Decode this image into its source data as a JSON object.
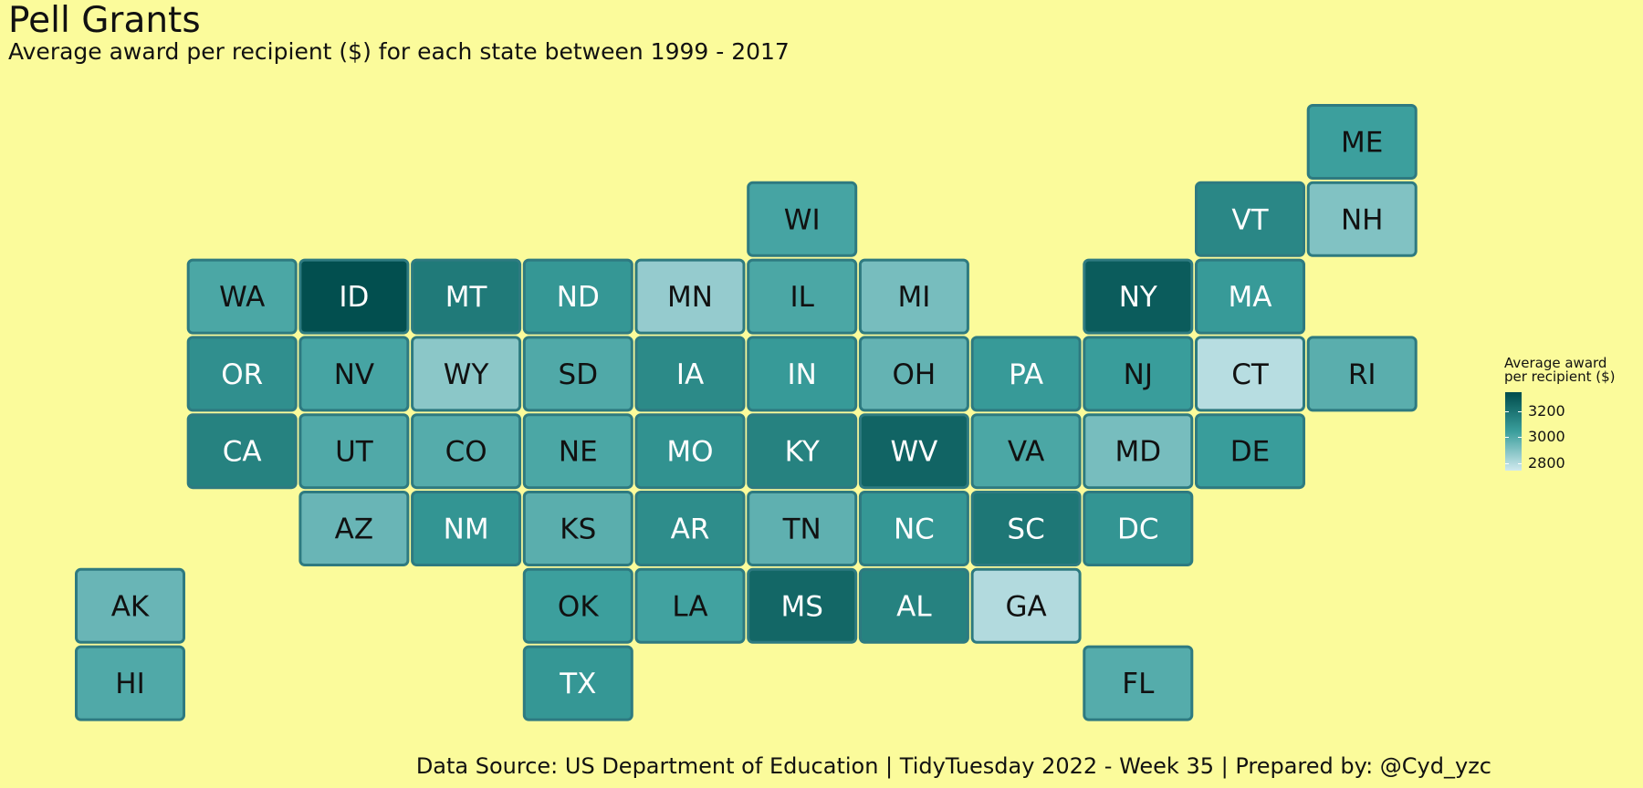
{
  "title": "Pell Grants",
  "subtitle": "Average award per recipient ($) for each state between 1999 - 2017",
  "caption": "Data Source:  US Department of Education | TidyTuesday 2022 - Week 35 | Prepared by: @Cyd_yzc",
  "legend": {
    "title_line1": "Average award",
    "title_line2": "per recipient ($)",
    "ticks": [
      3200,
      3000,
      2800
    ],
    "min": 2740,
    "max": 3350,
    "color_low": "#d0e9ee",
    "color_mid": "#3a9e9c",
    "color_high": "#004c4c"
  },
  "chart_data": {
    "type": "heatmap",
    "value_label": "Average award per recipient ($)",
    "states": [
      {
        "abbr": "ME",
        "col": 11,
        "row": 0,
        "value": 3040
      },
      {
        "abbr": "WI",
        "col": 6,
        "row": 1,
        "value": 3020
      },
      {
        "abbr": "VT",
        "col": 10,
        "row": 1,
        "value": 3130
      },
      {
        "abbr": "NH",
        "col": 11,
        "row": 1,
        "value": 2900
      },
      {
        "abbr": "WA",
        "col": 1,
        "row": 2,
        "value": 3010
      },
      {
        "abbr": "ID",
        "col": 2,
        "row": 2,
        "value": 3340
      },
      {
        "abbr": "MT",
        "col": 3,
        "row": 2,
        "value": 3180
      },
      {
        "abbr": "ND",
        "col": 4,
        "row": 2,
        "value": 3070
      },
      {
        "abbr": "MN",
        "col": 5,
        "row": 2,
        "value": 2860
      },
      {
        "abbr": "IL",
        "col": 6,
        "row": 2,
        "value": 3010
      },
      {
        "abbr": "MI",
        "col": 7,
        "row": 2,
        "value": 2920
      },
      {
        "abbr": "NY",
        "col": 9,
        "row": 2,
        "value": 3290
      },
      {
        "abbr": "MA",
        "col": 10,
        "row": 2,
        "value": 3060
      },
      {
        "abbr": "OR",
        "col": 1,
        "row": 3,
        "value": 3100
      },
      {
        "abbr": "NV",
        "col": 2,
        "row": 3,
        "value": 3020
      },
      {
        "abbr": "WY",
        "col": 3,
        "row": 3,
        "value": 2880
      },
      {
        "abbr": "SD",
        "col": 4,
        "row": 3,
        "value": 3000
      },
      {
        "abbr": "IA",
        "col": 5,
        "row": 3,
        "value": 3120
      },
      {
        "abbr": "IN",
        "col": 6,
        "row": 3,
        "value": 3060
      },
      {
        "abbr": "OH",
        "col": 7,
        "row": 3,
        "value": 2960
      },
      {
        "abbr": "PA",
        "col": 8,
        "row": 3,
        "value": 3060
      },
      {
        "abbr": "NJ",
        "col": 9,
        "row": 3,
        "value": 3050
      },
      {
        "abbr": "CT",
        "col": 10,
        "row": 3,
        "value": 2790
      },
      {
        "abbr": "RI",
        "col": 11,
        "row": 3,
        "value": 2980
      },
      {
        "abbr": "CA",
        "col": 1,
        "row": 4,
        "value": 3150
      },
      {
        "abbr": "UT",
        "col": 2,
        "row": 4,
        "value": 3000
      },
      {
        "abbr": "CO",
        "col": 3,
        "row": 4,
        "value": 2990
      },
      {
        "abbr": "NE",
        "col": 4,
        "row": 4,
        "value": 3010
      },
      {
        "abbr": "MO",
        "col": 5,
        "row": 4,
        "value": 3090
      },
      {
        "abbr": "KY",
        "col": 6,
        "row": 4,
        "value": 3150
      },
      {
        "abbr": "WV",
        "col": 7,
        "row": 4,
        "value": 3260
      },
      {
        "abbr": "VA",
        "col": 8,
        "row": 4,
        "value": 3010
      },
      {
        "abbr": "MD",
        "col": 9,
        "row": 4,
        "value": 2920
      },
      {
        "abbr": "DE",
        "col": 10,
        "row": 4,
        "value": 3050
      },
      {
        "abbr": "AZ",
        "col": 2,
        "row": 5,
        "value": 2950
      },
      {
        "abbr": "NM",
        "col": 3,
        "row": 5,
        "value": 3080
      },
      {
        "abbr": "KS",
        "col": 4,
        "row": 5,
        "value": 2980
      },
      {
        "abbr": "AR",
        "col": 5,
        "row": 5,
        "value": 3110
      },
      {
        "abbr": "TN",
        "col": 6,
        "row": 5,
        "value": 2970
      },
      {
        "abbr": "NC",
        "col": 7,
        "row": 5,
        "value": 3070
      },
      {
        "abbr": "SC",
        "col": 8,
        "row": 5,
        "value": 3190
      },
      {
        "abbr": "DC",
        "col": 9,
        "row": 5,
        "value": 3080
      },
      {
        "abbr": "AK",
        "col": 0,
        "row": 6,
        "value": 2950
      },
      {
        "abbr": "OK",
        "col": 4,
        "row": 6,
        "value": 3040
      },
      {
        "abbr": "LA",
        "col": 5,
        "row": 6,
        "value": 3030
      },
      {
        "abbr": "MS",
        "col": 6,
        "row": 6,
        "value": 3250
      },
      {
        "abbr": "AL",
        "col": 7,
        "row": 6,
        "value": 3150
      },
      {
        "abbr": "GA",
        "col": 8,
        "row": 6,
        "value": 2800
      },
      {
        "abbr": "HI",
        "col": 0,
        "row": 7,
        "value": 3000
      },
      {
        "abbr": "TX",
        "col": 4,
        "row": 7,
        "value": 3070
      },
      {
        "abbr": "FL",
        "col": 9,
        "row": 7,
        "value": 2990
      }
    ]
  }
}
